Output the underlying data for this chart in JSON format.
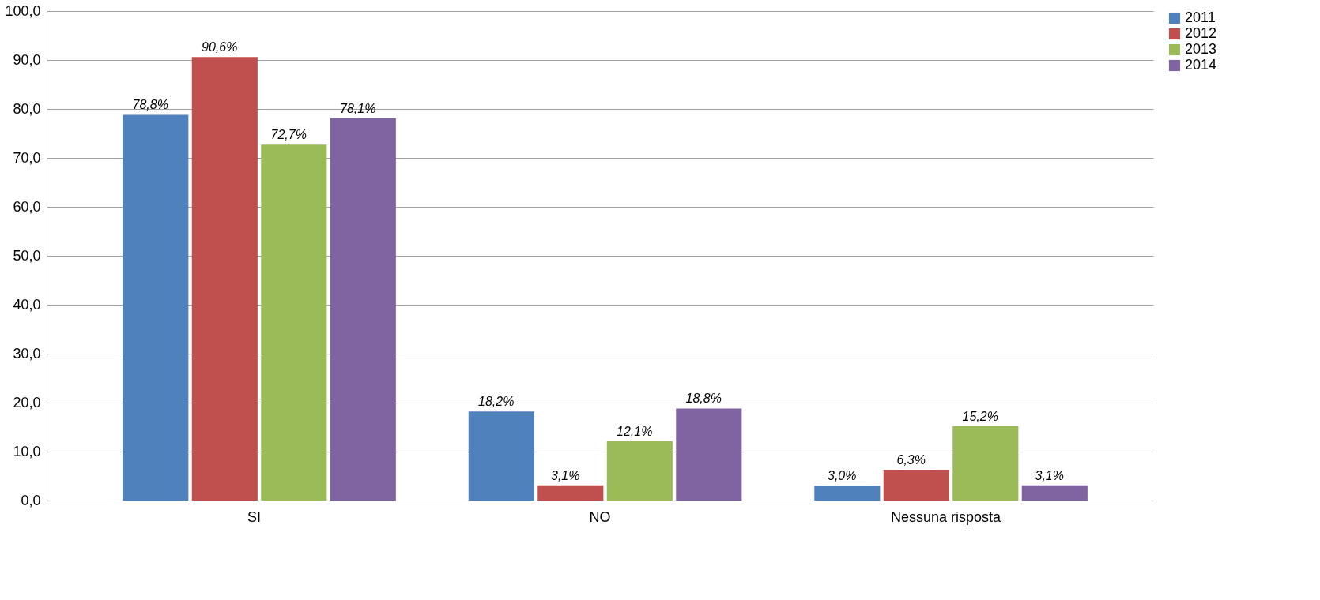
{
  "chart_data": {
    "type": "bar",
    "categories": [
      "SI",
      "NO",
      "Nessuna risposta"
    ],
    "series": [
      {
        "name": "2011",
        "color": "#4f81bd",
        "values": [
          78.8,
          18.2,
          3.0
        ],
        "value_labels": [
          "78,8%",
          "18,2%",
          "3,0%"
        ]
      },
      {
        "name": "2012",
        "color": "#c0504d",
        "values": [
          90.6,
          3.1,
          6.3
        ],
        "value_labels": [
          "90,6%",
          "3,1%",
          "6,3%"
        ]
      },
      {
        "name": "2013",
        "color": "#9bbb59",
        "values": [
          72.7,
          12.1,
          15.2
        ],
        "value_labels": [
          "72,7%",
          "12,1%",
          "15,2%"
        ]
      },
      {
        "name": "2014",
        "color": "#8064a2",
        "values": [
          78.1,
          18.8,
          3.1
        ],
        "value_labels": [
          "78,1%",
          "18,8%",
          "3,1%"
        ]
      }
    ],
    "ylim": [
      0,
      100
    ],
    "yticks": [
      {
        "value": 0,
        "label": "0,0"
      },
      {
        "value": 10,
        "label": "10,0"
      },
      {
        "value": 20,
        "label": "20,0"
      },
      {
        "value": 30,
        "label": "30,0"
      },
      {
        "value": 40,
        "label": "40,0"
      },
      {
        "value": 50,
        "label": "50,0"
      },
      {
        "value": 60,
        "label": "60,0"
      },
      {
        "value": 70,
        "label": "70,0"
      },
      {
        "value": 80,
        "label": "80,0"
      },
      {
        "value": 90,
        "label": "90,0"
      },
      {
        "value": 100,
        "label": "100,0"
      }
    ],
    "grid": "y",
    "legend": "right"
  }
}
